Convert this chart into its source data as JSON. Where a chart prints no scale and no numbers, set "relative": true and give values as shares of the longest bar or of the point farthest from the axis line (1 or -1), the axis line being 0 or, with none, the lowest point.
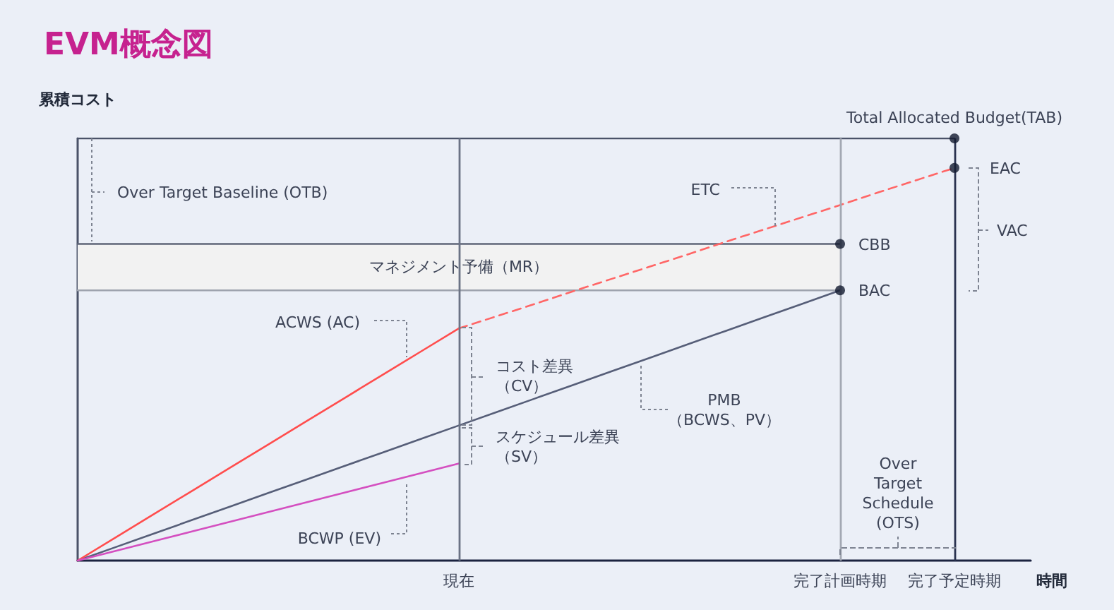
{
  "chart_data": {
    "type": "line",
    "title": "EVM概念図",
    "xlabel": "時間",
    "ylabel": "累積コスト",
    "relative": true,
    "categories": [
      null,
      null,
      null,
      null,
      null,
      null,
      null,
      null,
      null,
      null,
      "現在",
      null,
      null,
      null,
      null,
      null,
      null,
      null,
      null,
      null,
      "完了計画時期",
      null,
      null,
      "完了予定時期",
      null,
      null
    ],
    "series": [
      {
        "color": "#4a5268",
        "values": [
          1,
          1,
          1,
          1,
          1,
          1,
          1,
          1,
          1,
          1,
          1,
          1,
          1,
          1,
          1,
          1,
          1,
          1,
          1,
          1,
          1,
          1,
          1,
          1,
          null,
          null
        ]
      },
      {
        "color": "#5f6678",
        "values": [
          0.75,
          0.75,
          0.75,
          0.75,
          0.75,
          0.75,
          0.75,
          0.75,
          0.75,
          0.75,
          0.75,
          0.75,
          0.75,
          0.75,
          0.75,
          0.75,
          0.75,
          0.75,
          0.75,
          0.75,
          0.75,
          null,
          null,
          null,
          null,
          null
        ]
      },
      {
        "color": "#9ea3ae",
        "values": [
          0.64,
          0.64,
          0.64,
          0.64,
          0.64,
          0.64,
          0.64,
          0.64,
          0.64,
          0.64,
          0.64,
          0.64,
          0.64,
          0.64,
          0.64,
          0.64,
          0.64,
          0.64,
          0.64,
          0.64,
          0.64,
          null,
          null,
          null,
          null,
          null
        ]
      },
      {
        "color": "#565e78",
        "values": [
          0,
          0.032,
          0.064,
          0.096,
          0.128,
          0.16,
          0.192,
          0.224,
          0.256,
          0.288,
          0.32,
          0.352,
          0.384,
          0.416,
          0.448,
          0.48,
          0.512,
          0.544,
          0.576,
          0.608,
          0.64,
          null,
          null,
          null,
          null,
          null
        ]
      },
      {
        "color": "#ff4d4d",
        "values": [
          0,
          0.055,
          0.11,
          0.165,
          0.22,
          0.275,
          0.33,
          0.385,
          0.44,
          0.495,
          0.55,
          null,
          null,
          null,
          null,
          null,
          null,
          null,
          null,
          null,
          null,
          null,
          null,
          null,
          null,
          null
        ]
      },
      {
        "color": "#ff6666",
        "line_style": "dashed",
        "values": [
          null,
          null,
          null,
          null,
          null,
          null,
          null,
          null,
          null,
          null,
          0.55,
          0.579,
          0.608,
          0.638,
          0.667,
          0.696,
          0.725,
          0.755,
          0.784,
          0.813,
          0.842,
          0.872,
          0.901,
          0.93,
          null,
          null
        ]
      },
      {
        "color": "#d44fc0",
        "values": [
          0,
          0.023,
          0.046,
          0.069,
          0.092,
          0.115,
          0.138,
          0.161,
          0.184,
          0.207,
          0.23,
          null,
          null,
          null,
          null,
          null,
          null,
          null,
          null,
          null,
          null,
          null,
          null,
          null,
          null,
          null
        ]
      },
      {
        "type": "scatter",
        "color": "#131a30",
        "marker": "circle",
        "x": [
          "完了予定時期",
          "完了予定時期",
          "完了計画時期",
          "完了計画時期"
        ],
        "values": [
          1,
          0.93,
          0.75,
          0.64
        ]
      }
    ],
    "bands": [
      {
        "axis": "y",
        "from": 0.64,
        "to": 0.75,
        "label": "マネジメント予備（MR）",
        "color": "#f2f2f2"
      }
    ],
    "ref_lines": [
      {
        "axis": "x",
        "value": "現在",
        "color": "#6b7385"
      },
      {
        "axis": "x",
        "value": "完了計画時期",
        "color": "#a3a8b3"
      },
      {
        "axis": "x",
        "value": "完了予定時期",
        "color": "#2a3350"
      }
    ],
    "annotations": [
      {
        "text": "Total Allocated Budget(TAB)",
        "x": "完了予定時期",
        "y": 1
      },
      {
        "text": "EAC",
        "x": "完了予定時期",
        "y": 0.93
      },
      {
        "text": "CBB",
        "x": "完了計画時期",
        "y": 0.75
      },
      {
        "text": "BAC",
        "x": "完了計画時期",
        "y": 0.64
      },
      "VAC",
      "ETC",
      "Over Target Baseline (OTB)",
      "ACWS (AC)",
      "BCWP (EV)",
      "コスト差異（CV）",
      "スケジュール差異（SV）",
      "PMB\n（BCWS、PV）",
      "Over\nTarget\nSchedule\n(OTS)"
    ]
  }
}
